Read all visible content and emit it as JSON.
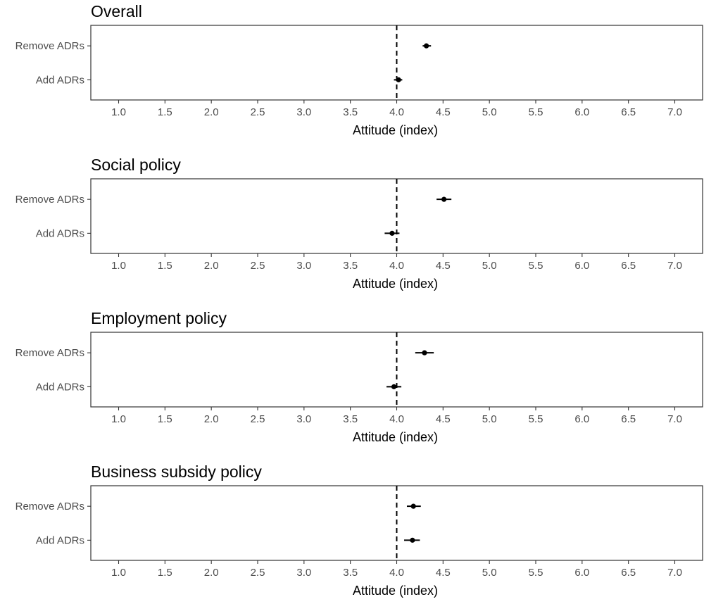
{
  "chart_data": [
    {
      "type": "scatter",
      "title": "Overall",
      "xlabel": "Attitude (index)",
      "ylabel": "",
      "xlim": [
        0.7,
        7.3
      ],
      "xticks": [
        "1.0",
        "1.5",
        "2.0",
        "2.5",
        "3.0",
        "3.5",
        "4.0",
        "4.5",
        "5.0",
        "5.5",
        "6.0",
        "6.5",
        "7.0"
      ],
      "reference_line": 4.0,
      "grid": false,
      "categories": [
        "Remove ADRs",
        "Add ADRs"
      ],
      "points": [
        {
          "label": "Remove ADRs",
          "estimate": 4.32,
          "ci": [
            4.28,
            4.37
          ]
        },
        {
          "label": "Add ADRs",
          "estimate": 4.02,
          "ci": [
            3.97,
            4.06
          ]
        }
      ]
    },
    {
      "type": "scatter",
      "title": "Social policy",
      "xlabel": "Attitude (index)",
      "ylabel": "",
      "xlim": [
        0.7,
        7.3
      ],
      "xticks": [
        "1.0",
        "1.5",
        "2.0",
        "2.5",
        "3.0",
        "3.5",
        "4.0",
        "4.5",
        "5.0",
        "5.5",
        "6.0",
        "6.5",
        "7.0"
      ],
      "reference_line": 4.0,
      "grid": false,
      "categories": [
        "Remove ADRs",
        "Add ADRs"
      ],
      "points": [
        {
          "label": "Remove ADRs",
          "estimate": 4.51,
          "ci": [
            4.43,
            4.59
          ]
        },
        {
          "label": "Add ADRs",
          "estimate": 3.95,
          "ci": [
            3.87,
            4.03
          ]
        }
      ]
    },
    {
      "type": "scatter",
      "title": "Employment policy",
      "xlabel": "Attitude (index)",
      "ylabel": "",
      "xlim": [
        0.7,
        7.3
      ],
      "xticks": [
        "1.0",
        "1.5",
        "2.0",
        "2.5",
        "3.0",
        "3.5",
        "4.0",
        "4.5",
        "5.0",
        "5.5",
        "6.0",
        "6.5",
        "7.0"
      ],
      "reference_line": 4.0,
      "grid": false,
      "categories": [
        "Remove ADRs",
        "Add ADRs"
      ],
      "points": [
        {
          "label": "Remove ADRs",
          "estimate": 4.3,
          "ci": [
            4.2,
            4.4
          ]
        },
        {
          "label": "Add ADRs",
          "estimate": 3.97,
          "ci": [
            3.89,
            4.05
          ]
        }
      ]
    },
    {
      "type": "scatter",
      "title": "Business subsidy policy",
      "xlabel": "Attitude (index)",
      "ylabel": "",
      "xlim": [
        0.7,
        7.3
      ],
      "xticks": [
        "1.0",
        "1.5",
        "2.0",
        "2.5",
        "3.0",
        "3.5",
        "4.0",
        "4.5",
        "5.0",
        "5.5",
        "6.0",
        "6.5",
        "7.0"
      ],
      "reference_line": 4.0,
      "grid": false,
      "categories": [
        "Remove ADRs",
        "Add ADRs"
      ],
      "points": [
        {
          "label": "Remove ADRs",
          "estimate": 4.18,
          "ci": [
            4.11,
            4.26
          ]
        },
        {
          "label": "Add ADRs",
          "estimate": 4.17,
          "ci": [
            4.08,
            4.25
          ]
        }
      ]
    }
  ]
}
